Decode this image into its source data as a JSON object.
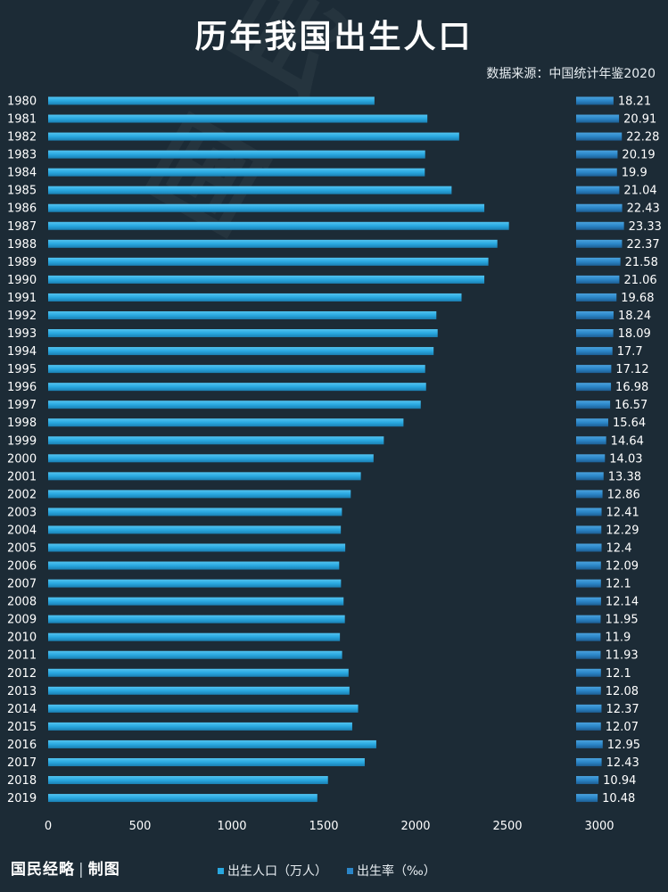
{
  "header": {
    "title": "历年我国出生人口",
    "source": "数据来源：中国统计年鉴2020"
  },
  "footer": {
    "brand_left": "国民经略",
    "brand_sep": "|",
    "brand_right": "制图"
  },
  "legend": {
    "population_label": "出生人口（万人）",
    "rate_label": "出生率（‰）"
  },
  "colors": {
    "background": "#1c2b36",
    "population_bar": "#29a8e0",
    "rate_bar": "#2b86c8"
  },
  "chart_data": {
    "type": "bar",
    "orientation": "horizontal",
    "categories": [
      "1980",
      "1981",
      "1982",
      "1983",
      "1984",
      "1985",
      "1986",
      "1987",
      "1988",
      "1989",
      "1990",
      "1991",
      "1992",
      "1993",
      "1994",
      "1995",
      "1996",
      "1997",
      "1998",
      "1999",
      "2000",
      "2001",
      "2002",
      "2003",
      "2004",
      "2005",
      "2006",
      "2007",
      "2008",
      "2009",
      "2010",
      "2011",
      "2012",
      "2013",
      "2014",
      "2015",
      "2016",
      "2017",
      "2018",
      "2019"
    ],
    "series": [
      {
        "name": "出生人口（万人）",
        "values": [
          1776,
          2064,
          2237,
          2052,
          2050,
          2196,
          2374,
          2508,
          2445,
          2396,
          2374,
          2250,
          2113,
          2120,
          2098,
          2052,
          2057,
          2028,
          1934,
          1827,
          1771,
          1702,
          1647,
          1599,
          1593,
          1617,
          1584,
          1594,
          1608,
          1615,
          1588,
          1600,
          1635,
          1640,
          1687,
          1655,
          1786,
          1723,
          1523,
          1465
        ]
      },
      {
        "name": "出生率（‰）",
        "values": [
          18.21,
          20.91,
          22.28,
          20.19,
          19.9,
          21.04,
          22.43,
          23.33,
          22.37,
          21.58,
          21.06,
          19.68,
          18.24,
          18.09,
          17.7,
          17.12,
          16.98,
          16.57,
          15.64,
          14.64,
          14.03,
          13.38,
          12.86,
          12.41,
          12.29,
          12.4,
          12.09,
          12.1,
          12.14,
          11.95,
          11.9,
          11.93,
          12.1,
          12.08,
          12.37,
          12.07,
          12.95,
          12.43,
          10.94,
          10.48
        ]
      }
    ],
    "rate_labels": [
      "18.21",
      "20.91",
      "22.28",
      "20.19",
      "19.9",
      "21.04",
      "22.43",
      "23.33",
      "22.37",
      "21.58",
      "21.06",
      "19.68",
      "18.24",
      "18.09",
      "17.7",
      "17.12",
      "16.98",
      "16.57",
      "15.64",
      "14.64",
      "14.03",
      "13.38",
      "12.86",
      "12.41",
      "12.29",
      "12.4",
      "12.09",
      "12.1",
      "12.14",
      "11.95",
      "11.9",
      "11.93",
      "12.1",
      "12.08",
      "12.37",
      "12.07",
      "12.95",
      "12.43",
      "10.94",
      "10.48"
    ],
    "xlim": [
      0,
      3000
    ],
    "xticks": [
      "0",
      "500",
      "1000",
      "1500",
      "2000",
      "2500",
      "3000"
    ],
    "grid": false,
    "legend_position": "bottom"
  }
}
